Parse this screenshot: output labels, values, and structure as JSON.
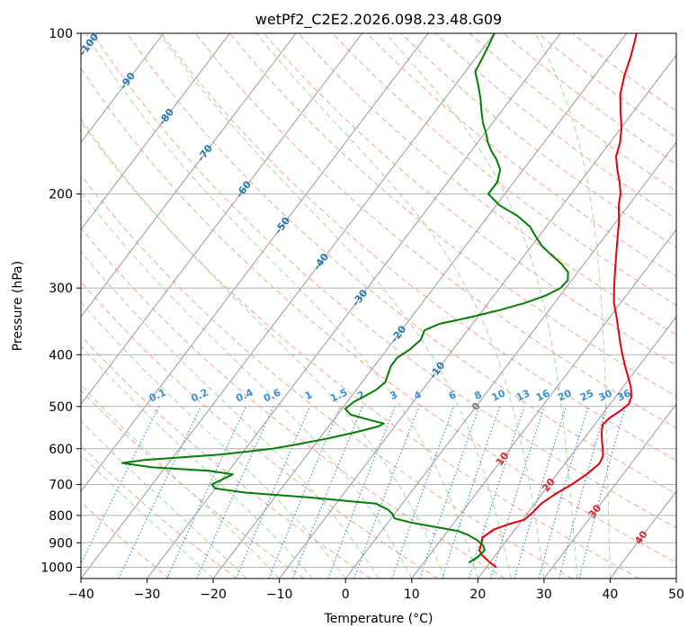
{
  "chart_data": {
    "type": "line",
    "subtype": "skew-T log-P diagram",
    "title": "wetPf2_C2E2.2026.098.23.48.G09",
    "xlabel": "Temperature (°C)",
    "ylabel": "Pressure (hPa)",
    "xlim": [
      -40,
      50
    ],
    "ylim": [
      1050,
      100
    ],
    "y_scale": "log",
    "grid": true,
    "x_ticks": [
      -40,
      -30,
      -20,
      -10,
      0,
      10,
      20,
      30,
      40,
      50
    ],
    "y_ticks": [
      100,
      200,
      300,
      400,
      500,
      600,
      700,
      800,
      900,
      1000
    ],
    "isotherm_labels": [
      "-100",
      "-90",
      "-80",
      "-70",
      "-60",
      "-50",
      "-40",
      "-30",
      "-20",
      "-10",
      "0",
      "10",
      "20",
      "30",
      "40"
    ],
    "mixing_ratio_labels": [
      "0.1",
      "0.2",
      "0.4",
      "0.6",
      "1",
      "1.5",
      "2",
      "3",
      "4",
      "6",
      "8",
      "10",
      "13",
      "16",
      "20",
      "25",
      "30",
      "36"
    ],
    "colors": {
      "temperature": "#e8000b",
      "dewpoint": "#008000",
      "isotherm": "#9a9a9a",
      "dry_adiabat": "#f5a48a",
      "moist_adiabat": "#a6d8a3",
      "mixing_ratio": "#3a8fd9",
      "label_cold": "#1f78b4",
      "label_warm": "#d62728",
      "label_zero": "#808080"
    },
    "series": [
      {
        "key": "temperature",
        "points": [
          [
            1000,
            21.5
          ],
          [
            980,
            20
          ],
          [
            950,
            18
          ],
          [
            930,
            17
          ],
          [
            900,
            16.5
          ],
          [
            880,
            16
          ],
          [
            850,
            16.8
          ],
          [
            830,
            18.5
          ],
          [
            815,
            20.3
          ],
          [
            790,
            20.7
          ],
          [
            760,
            21
          ],
          [
            730,
            22
          ],
          [
            700,
            23.4
          ],
          [
            670,
            24.5
          ],
          [
            640,
            25.2
          ],
          [
            620,
            24.9
          ],
          [
            600,
            24
          ],
          [
            580,
            23
          ],
          [
            560,
            22
          ],
          [
            540,
            21.2
          ],
          [
            525,
            21.5
          ],
          [
            510,
            22.3
          ],
          [
            495,
            22.8
          ],
          [
            480,
            22.4
          ],
          [
            460,
            21.2
          ],
          [
            440,
            19.6
          ],
          [
            420,
            17.9
          ],
          [
            400,
            16.2
          ],
          [
            380,
            14.5
          ],
          [
            360,
            12.8
          ],
          [
            340,
            11
          ],
          [
            320,
            9
          ],
          [
            300,
            7.3
          ],
          [
            280,
            5.6
          ],
          [
            260,
            3.8
          ],
          [
            240,
            1.9
          ],
          [
            225,
            0.4
          ],
          [
            210,
            -1.5
          ],
          [
            200,
            -2.5
          ],
          [
            190,
            -4
          ],
          [
            180,
            -5.8
          ],
          [
            170,
            -7.5
          ],
          [
            160,
            -8.5
          ],
          [
            150,
            -10
          ],
          [
            140,
            -12
          ],
          [
            130,
            -14
          ],
          [
            120,
            -15.5
          ],
          [
            110,
            -16.8
          ],
          [
            100,
            -18.5
          ]
        ]
      },
      {
        "key": "dewpoint",
        "points": [
          [
            980,
            16.8
          ],
          [
            960,
            17.5
          ],
          [
            930,
            17.8
          ],
          [
            910,
            17
          ],
          [
            890,
            15.5
          ],
          [
            870,
            13.5
          ],
          [
            855,
            11.5
          ],
          [
            840,
            7.5
          ],
          [
            825,
            3.5
          ],
          [
            810,
            0.5
          ],
          [
            795,
            -0.3
          ],
          [
            780,
            -1.5
          ],
          [
            760,
            -4
          ],
          [
            740,
            -15
          ],
          [
            725,
            -25
          ],
          [
            712,
            -30
          ],
          [
            700,
            -31
          ],
          [
            685,
            -30
          ],
          [
            670,
            -29
          ],
          [
            660,
            -33
          ],
          [
            650,
            -42
          ],
          [
            638,
            -47
          ],
          [
            630,
            -44
          ],
          [
            615,
            -33
          ],
          [
            600,
            -26
          ],
          [
            590,
            -23
          ],
          [
            575,
            -19
          ],
          [
            560,
            -15.5
          ],
          [
            545,
            -12.5
          ],
          [
            538,
            -12
          ],
          [
            530,
            -14.5
          ],
          [
            518,
            -18
          ],
          [
            505,
            -19.5
          ],
          [
            490,
            -19
          ],
          [
            478,
            -18
          ],
          [
            465,
            -17
          ],
          [
            450,
            -16.5
          ],
          [
            435,
            -17
          ],
          [
            420,
            -17.5
          ],
          [
            405,
            -17.5
          ],
          [
            390,
            -16.5
          ],
          [
            375,
            -16
          ],
          [
            360,
            -16.5
          ],
          [
            350,
            -15
          ],
          [
            340,
            -11
          ],
          [
            330,
            -7.5
          ],
          [
            320,
            -4.5
          ],
          [
            310,
            -2.2
          ],
          [
            300,
            -0.8
          ],
          [
            290,
            -0.6
          ],
          [
            280,
            -1.5
          ],
          [
            270,
            -3.5
          ],
          [
            260,
            -6
          ],
          [
            250,
            -8.5
          ],
          [
            240,
            -10.5
          ],
          [
            230,
            -12.5
          ],
          [
            220,
            -15.5
          ],
          [
            210,
            -19.5
          ],
          [
            200,
            -22.5
          ],
          [
            190,
            -22.5
          ],
          [
            180,
            -23.5
          ],
          [
            172,
            -25.3
          ],
          [
            166,
            -27
          ],
          [
            160,
            -28.5
          ],
          [
            153,
            -30
          ],
          [
            147,
            -31.5
          ],
          [
            140,
            -33
          ],
          [
            133,
            -34.5
          ],
          [
            125,
            -36.5
          ],
          [
            118,
            -38.5
          ],
          [
            111,
            -39
          ],
          [
            105,
            -39.5
          ],
          [
            100,
            -40
          ]
        ]
      }
    ]
  }
}
